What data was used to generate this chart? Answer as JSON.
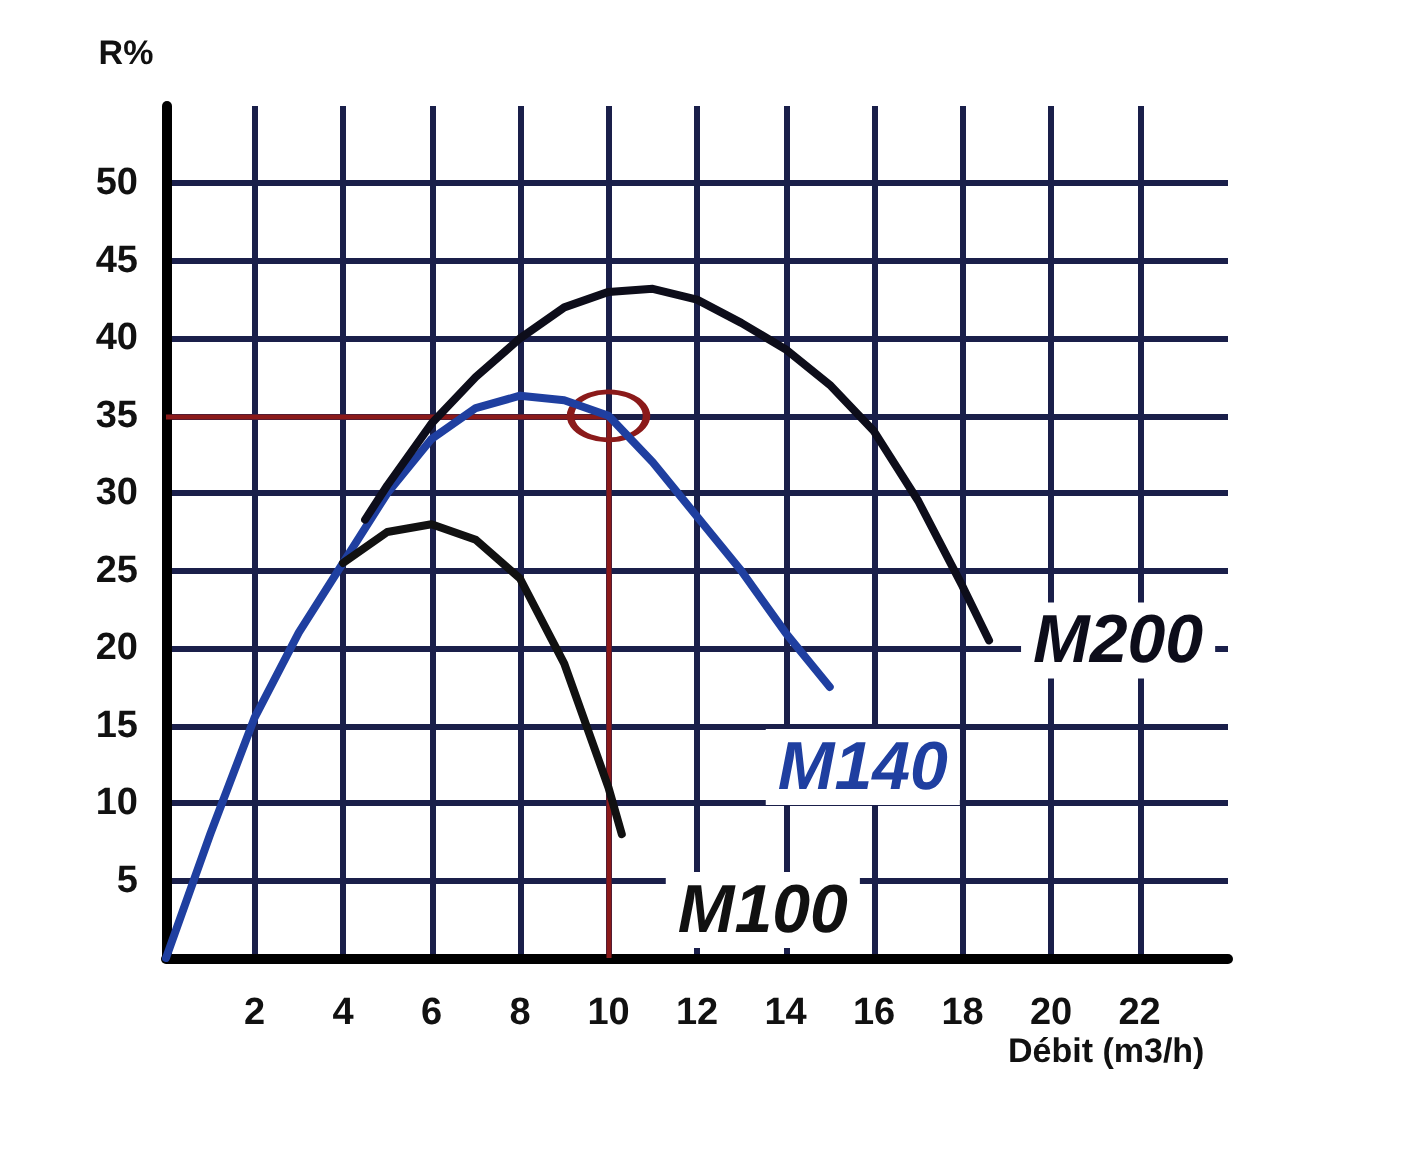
{
  "chart_data": {
    "type": "line",
    "xlabel": "Débit (m3/h)",
    "ylabel": "R%",
    "xlim": [
      0,
      24
    ],
    "xticks": [
      2,
      4,
      6,
      8,
      10,
      12,
      14,
      16,
      18,
      20,
      22
    ],
    "ylim": [
      0,
      55
    ],
    "yticks": [
      5,
      10,
      15,
      20,
      25,
      30,
      35,
      40,
      45,
      50
    ],
    "grid": true,
    "legend": false,
    "marker": "none",
    "line_style": "solid",
    "series": [
      {
        "name": "M200",
        "color": "#0d0d1a",
        "x": [
          4.5,
          5,
          6,
          7,
          8,
          9,
          10,
          11,
          12,
          13,
          14,
          15,
          16,
          17,
          18,
          18.6
        ],
        "values": [
          28.3,
          30.5,
          34.5,
          37.5,
          40,
          42,
          43,
          43.2,
          42.5,
          41,
          39.3,
          37,
          34,
          29.5,
          24,
          20.5
        ]
      },
      {
        "name": "M140",
        "color": "#1f3fa0",
        "x": [
          0,
          1,
          2,
          3,
          5,
          6,
          7,
          8,
          9,
          10,
          11,
          12,
          13,
          14,
          15
        ],
        "values": [
          0,
          8,
          15.5,
          21,
          30,
          33.5,
          35.5,
          36.3,
          36,
          35,
          32,
          28.5,
          25,
          21,
          17.5
        ]
      },
      {
        "name": "M100",
        "color": "#111111",
        "x": [
          4,
          5,
          6,
          7,
          8,
          9,
          9.5,
          10,
          10.3
        ],
        "values": [
          25.5,
          27.5,
          28,
          27,
          24.5,
          19,
          15,
          11,
          8
        ]
      }
    ],
    "ref_lines": [
      {
        "axis": "y",
        "value": 35,
        "color": "#8b1a1a"
      },
      {
        "axis": "x",
        "value": 10,
        "color": "#8b1a1a"
      }
    ]
  }
}
